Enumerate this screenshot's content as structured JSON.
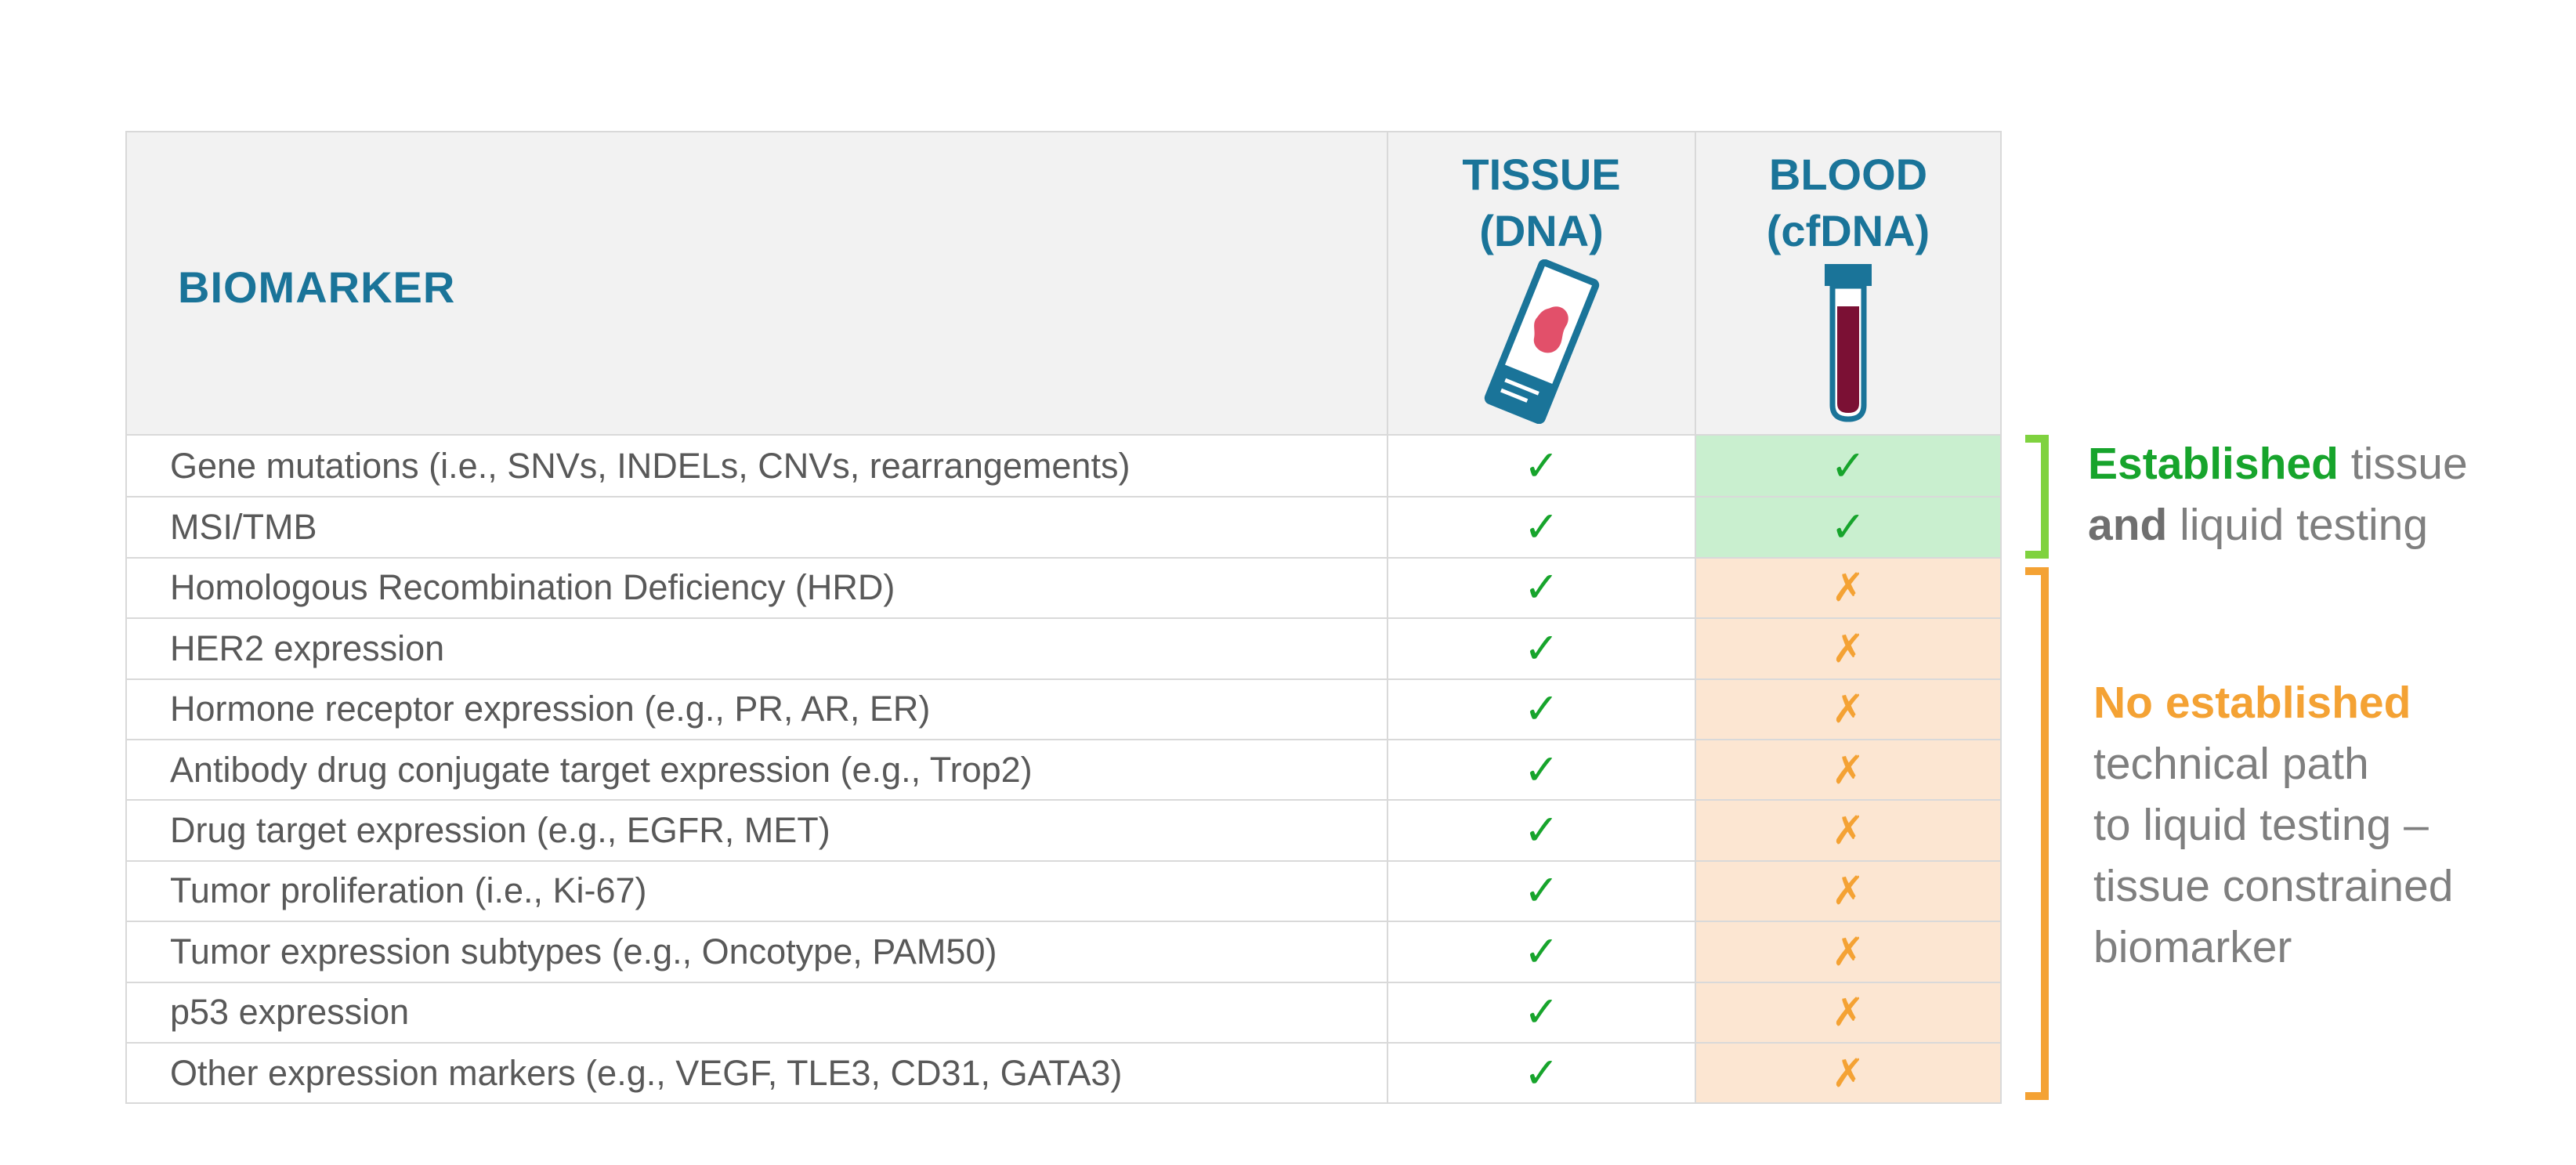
{
  "header": {
    "biomarker": "BIOMARKER",
    "tissue_line1": "TISSUE",
    "tissue_line2": "(DNA)",
    "blood_line1": "BLOOD",
    "blood_line2": "(cfDNA)",
    "tissue_icon": "tissue-slide-icon",
    "blood_icon": "blood-tube-icon"
  },
  "rows": [
    {
      "label": "Gene mutations (i.e., SNVs, INDELs, CNVs, rearrangements)",
      "tissue": "✓",
      "blood": "✓"
    },
    {
      "label": "MSI/TMB",
      "tissue": "✓",
      "blood": "✓"
    },
    {
      "label": "Homologous Recombination Deficiency (HRD)",
      "tissue": "✓",
      "blood": "✗"
    },
    {
      "label": "HER2 expression",
      "tissue": "✓",
      "blood": "✗"
    },
    {
      "label": "Hormone receptor expression (e.g., PR, AR, ER)",
      "tissue": "✓",
      "blood": "✗"
    },
    {
      "label": "Antibody drug conjugate target expression (e.g., Trop2)",
      "tissue": "✓",
      "blood": "✗"
    },
    {
      "label": "Drug target expression (e.g., EGFR, MET)",
      "tissue": "✓",
      "blood": "✗"
    },
    {
      "label": "Tumor proliferation (i.e., Ki-67)",
      "tissue": "✓",
      "blood": "✗"
    },
    {
      "label": "Tumor expression subtypes (e.g., Oncotype, PAM50)",
      "tissue": "✓",
      "blood": "✗"
    },
    {
      "label": "p53 expression",
      "tissue": "✓",
      "blood": "✗"
    },
    {
      "label": "Other expression markers (e.g., VEGF, TLE3, CD31, GATA3)",
      "tissue": "✓",
      "blood": "✗"
    }
  ],
  "notes": {
    "established": {
      "em1": "Established",
      "text1": " tissue",
      "em2": "and",
      "text2": " liquid testing"
    },
    "not_established": {
      "em": "No established",
      "line1": "technical path",
      "line2": "to liquid testing –",
      "line3": "tissue constrained",
      "line4": "biomarker"
    }
  },
  "colors": {
    "header_text": "#1a7499",
    "check": "#17a42c",
    "cross": "#f4a234",
    "established_bg": "#c9efcf",
    "not_established_bg": "#fce6d2",
    "established_bracket": "#7fd23f",
    "not_established_bracket": "#f4a234"
  }
}
